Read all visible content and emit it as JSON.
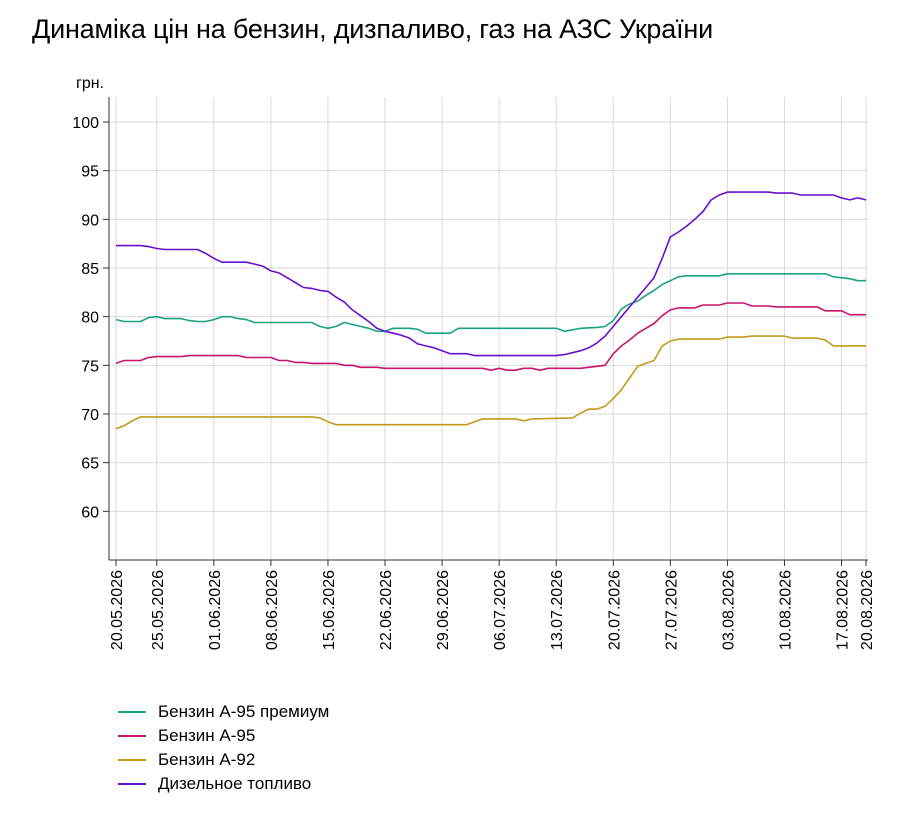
{
  "chart_data": {
    "type": "line",
    "title": "Динаміка цін на бензин, дизпаливо, газ на АЗС України",
    "ylabel": "грн.",
    "xlabel": "",
    "ylim": [
      55,
      100
    ],
    "yticks": [
      60,
      65,
      70,
      75,
      80,
      85,
      90,
      95,
      100
    ],
    "grid": true,
    "legend_position": "bottom-left",
    "date_start": "20.05.2026",
    "date_end": "20.08.2026",
    "x_tick_labels": [
      "20.05.2026",
      "25.05.2026",
      "01.06.2026",
      "08.06.2026",
      "15.06.2026",
      "22.06.2026",
      "29.06.2026",
      "06.07.2026",
      "13.07.2026",
      "20.07.2026",
      "27.07.2026",
      "03.08.2026",
      "10.08.2026",
      "17.08.2026",
      "20.08.2026"
    ],
    "series": [
      {
        "name": "Бензин А-95 премиум",
        "color": "#1aa383",
        "points": [
          [
            "20.05.2026",
            79.7
          ],
          [
            "21.05.2026",
            79.5
          ],
          [
            "23.05.2026",
            79.5
          ],
          [
            "24.05.2026",
            79.9
          ],
          [
            "25.05.2026",
            80.0
          ],
          [
            "26.05.2026",
            79.8
          ],
          [
            "28.05.2026",
            79.8
          ],
          [
            "29.05.2026",
            79.6
          ],
          [
            "30.05.2026",
            79.5
          ],
          [
            "31.05.2026",
            79.5
          ],
          [
            "01.06.2026",
            79.7
          ],
          [
            "02.06.2026",
            80.0
          ],
          [
            "03.06.2026",
            80.0
          ],
          [
            "04.06.2026",
            79.8
          ],
          [
            "05.06.2026",
            79.7
          ],
          [
            "06.06.2026",
            79.4
          ],
          [
            "13.06.2026",
            79.4
          ],
          [
            "14.06.2026",
            79.0
          ],
          [
            "15.06.2026",
            78.8
          ],
          [
            "16.06.2026",
            79.0
          ],
          [
            "17.06.2026",
            79.4
          ],
          [
            "18.06.2026",
            79.2
          ],
          [
            "19.06.2026",
            79.0
          ],
          [
            "20.06.2026",
            78.8
          ],
          [
            "21.06.2026",
            78.5
          ],
          [
            "22.06.2026",
            78.5
          ],
          [
            "23.06.2026",
            78.8
          ],
          [
            "25.06.2026",
            78.8
          ],
          [
            "26.06.2026",
            78.7
          ],
          [
            "27.06.2026",
            78.3
          ],
          [
            "30.06.2026",
            78.3
          ],
          [
            "01.07.2026",
            78.8
          ],
          [
            "13.07.2026",
            78.8
          ],
          [
            "14.07.2026",
            78.5
          ],
          [
            "16.07.2026",
            78.8
          ],
          [
            "18.07.2026",
            78.9
          ],
          [
            "19.07.2026",
            79.0
          ],
          [
            "20.07.2026",
            79.6
          ],
          [
            "21.07.2026",
            80.8
          ],
          [
            "22.07.2026",
            81.3
          ],
          [
            "23.07.2026",
            81.6
          ],
          [
            "24.07.2026",
            82.2
          ],
          [
            "25.07.2026",
            82.7
          ],
          [
            "26.07.2026",
            83.3
          ],
          [
            "27.07.2026",
            83.7
          ],
          [
            "28.07.2026",
            84.1
          ],
          [
            "29.07.2026",
            84.2
          ],
          [
            "02.08.2026",
            84.2
          ],
          [
            "03.08.2026",
            84.4
          ],
          [
            "15.08.2026",
            84.4
          ],
          [
            "16.08.2026",
            84.1
          ],
          [
            "18.08.2026",
            83.9
          ],
          [
            "19.08.2026",
            83.7
          ],
          [
            "20.08.2026",
            83.7
          ]
        ]
      },
      {
        "name": "Бензин А-95",
        "color": "#c8136e",
        "points": [
          [
            "20.05.2026",
            75.2
          ],
          [
            "21.05.2026",
            75.5
          ],
          [
            "23.05.2026",
            75.5
          ],
          [
            "24.05.2026",
            75.8
          ],
          [
            "25.05.2026",
            75.9
          ],
          [
            "28.05.2026",
            75.9
          ],
          [
            "29.05.2026",
            76.0
          ],
          [
            "04.06.2026",
            76.0
          ],
          [
            "05.06.2026",
            75.8
          ],
          [
            "08.06.2026",
            75.8
          ],
          [
            "09.06.2026",
            75.5
          ],
          [
            "10.06.2026",
            75.5
          ],
          [
            "11.06.2026",
            75.3
          ],
          [
            "12.06.2026",
            75.3
          ],
          [
            "13.06.2026",
            75.2
          ],
          [
            "16.06.2026",
            75.2
          ],
          [
            "17.06.2026",
            75.0
          ],
          [
            "18.06.2026",
            75.0
          ],
          [
            "19.06.2026",
            74.8
          ],
          [
            "21.06.2026",
            74.8
          ],
          [
            "22.06.2026",
            74.7
          ],
          [
            "04.07.2026",
            74.7
          ],
          [
            "05.07.2026",
            74.5
          ],
          [
            "06.07.2026",
            74.7
          ],
          [
            "07.07.2026",
            74.5
          ],
          [
            "08.07.2026",
            74.5
          ],
          [
            "09.07.2026",
            74.7
          ],
          [
            "10.07.2026",
            74.7
          ],
          [
            "11.07.2026",
            74.5
          ],
          [
            "12.07.2026",
            74.7
          ],
          [
            "16.07.2026",
            74.7
          ],
          [
            "17.07.2026",
            74.8
          ],
          [
            "18.07.2026",
            74.9
          ],
          [
            "19.07.2026",
            75.0
          ],
          [
            "20.07.2026",
            76.2
          ],
          [
            "21.07.2026",
            77.0
          ],
          [
            "22.07.2026",
            77.6
          ],
          [
            "23.07.2026",
            78.3
          ],
          [
            "24.07.2026",
            78.8
          ],
          [
            "25.07.2026",
            79.3
          ],
          [
            "26.07.2026",
            80.1
          ],
          [
            "27.07.2026",
            80.7
          ],
          [
            "28.07.2026",
            80.9
          ],
          [
            "30.07.2026",
            80.9
          ],
          [
            "31.07.2026",
            81.2
          ],
          [
            "02.08.2026",
            81.2
          ],
          [
            "03.08.2026",
            81.4
          ],
          [
            "05.08.2026",
            81.4
          ],
          [
            "06.08.2026",
            81.1
          ],
          [
            "08.08.2026",
            81.1
          ],
          [
            "09.08.2026",
            81.0
          ],
          [
            "14.08.2026",
            81.0
          ],
          [
            "15.08.2026",
            80.6
          ],
          [
            "17.08.2026",
            80.6
          ],
          [
            "18.08.2026",
            80.2
          ],
          [
            "20.08.2026",
            80.2
          ]
        ]
      },
      {
        "name": "Бензин А-92",
        "color": "#c39a1b",
        "points": [
          [
            "20.05.2026",
            68.5
          ],
          [
            "21.05.2026",
            68.8
          ],
          [
            "22.05.2026",
            69.3
          ],
          [
            "23.05.2026",
            69.7
          ],
          [
            "13.06.2026",
            69.7
          ],
          [
            "14.06.2026",
            69.6
          ],
          [
            "15.06.2026",
            69.2
          ],
          [
            "16.06.2026",
            68.9
          ],
          [
            "02.07.2026",
            68.9
          ],
          [
            "03.07.2026",
            69.2
          ],
          [
            "04.07.2026",
            69.5
          ],
          [
            "08.07.2026",
            69.5
          ],
          [
            "09.07.2026",
            69.3
          ],
          [
            "10.07.2026",
            69.5
          ],
          [
            "15.07.2026",
            69.6
          ],
          [
            "16.07.2026",
            70.1
          ],
          [
            "17.07.2026",
            70.5
          ],
          [
            "18.07.2026",
            70.5
          ],
          [
            "19.07.2026",
            70.8
          ],
          [
            "20.07.2026",
            71.6
          ],
          [
            "21.07.2026",
            72.5
          ],
          [
            "22.07.2026",
            73.7
          ],
          [
            "23.07.2026",
            74.9
          ],
          [
            "24.07.2026",
            75.2
          ],
          [
            "25.07.2026",
            75.5
          ],
          [
            "26.07.2026",
            77.0
          ],
          [
            "27.07.2026",
            77.5
          ],
          [
            "28.07.2026",
            77.7
          ],
          [
            "02.08.2026",
            77.7
          ],
          [
            "03.08.2026",
            77.9
          ],
          [
            "05.08.2026",
            77.9
          ],
          [
            "06.08.2026",
            78.0
          ],
          [
            "10.08.2026",
            78.0
          ],
          [
            "11.08.2026",
            77.8
          ],
          [
            "14.08.2026",
            77.8
          ],
          [
            "15.08.2026",
            77.6
          ],
          [
            "16.08.2026",
            77.0
          ],
          [
            "20.08.2026",
            77.0
          ]
        ]
      },
      {
        "name": "Дизельное топливо",
        "color": "#6a0fcc",
        "points": [
          [
            "20.05.2026",
            87.3
          ],
          [
            "23.05.2026",
            87.3
          ],
          [
            "24.05.2026",
            87.2
          ],
          [
            "25.05.2026",
            87.0
          ],
          [
            "26.05.2026",
            86.9
          ],
          [
            "30.05.2026",
            86.9
          ],
          [
            "31.05.2026",
            86.5
          ],
          [
            "01.06.2026",
            86.0
          ],
          [
            "02.06.2026",
            85.6
          ],
          [
            "05.06.2026",
            85.6
          ],
          [
            "06.06.2026",
            85.4
          ],
          [
            "07.06.2026",
            85.2
          ],
          [
            "08.06.2026",
            84.7
          ],
          [
            "09.06.2026",
            84.5
          ],
          [
            "10.06.2026",
            84.0
          ],
          [
            "11.06.2026",
            83.5
          ],
          [
            "12.06.2026",
            83.0
          ],
          [
            "13.06.2026",
            82.9
          ],
          [
            "14.06.2026",
            82.7
          ],
          [
            "15.06.2026",
            82.6
          ],
          [
            "16.06.2026",
            82.0
          ],
          [
            "17.06.2026",
            81.5
          ],
          [
            "18.06.2026",
            80.7
          ],
          [
            "19.06.2026",
            80.1
          ],
          [
            "20.06.2026",
            79.5
          ],
          [
            "21.06.2026",
            78.8
          ],
          [
            "22.06.2026",
            78.5
          ],
          [
            "23.06.2026",
            78.3
          ],
          [
            "24.06.2026",
            78.1
          ],
          [
            "25.06.2026",
            77.8
          ],
          [
            "26.06.2026",
            77.2
          ],
          [
            "27.06.2026",
            77.0
          ],
          [
            "28.06.2026",
            76.8
          ],
          [
            "29.06.2026",
            76.5
          ],
          [
            "30.06.2026",
            76.2
          ],
          [
            "02.07.2026",
            76.2
          ],
          [
            "03.07.2026",
            76.0
          ],
          [
            "13.07.2026",
            76.0
          ],
          [
            "14.07.2026",
            76.1
          ],
          [
            "15.07.2026",
            76.3
          ],
          [
            "16.07.2026",
            76.5
          ],
          [
            "17.07.2026",
            76.8
          ],
          [
            "18.07.2026",
            77.3
          ],
          [
            "19.07.2026",
            78.0
          ],
          [
            "20.07.2026",
            79.0
          ],
          [
            "21.07.2026",
            80.0
          ],
          [
            "22.07.2026",
            81.0
          ],
          [
            "23.07.2026",
            82.0
          ],
          [
            "24.07.2026",
            83.0
          ],
          [
            "25.07.2026",
            84.0
          ],
          [
            "26.07.2026",
            86.0
          ],
          [
            "27.07.2026",
            88.2
          ],
          [
            "28.07.2026",
            88.7
          ],
          [
            "29.07.2026",
            89.3
          ],
          [
            "30.07.2026",
            90.0
          ],
          [
            "31.07.2026",
            90.8
          ],
          [
            "01.08.2026",
            92.0
          ],
          [
            "02.08.2026",
            92.5
          ],
          [
            "03.08.2026",
            92.8
          ],
          [
            "08.08.2026",
            92.8
          ],
          [
            "09.08.2026",
            92.7
          ],
          [
            "11.08.2026",
            92.7
          ],
          [
            "12.08.2026",
            92.5
          ],
          [
            "16.08.2026",
            92.5
          ],
          [
            "17.08.2026",
            92.2
          ],
          [
            "18.08.2026",
            92.0
          ],
          [
            "19.08.2026",
            92.2
          ],
          [
            "20.08.2026",
            92.0
          ]
        ]
      }
    ]
  }
}
